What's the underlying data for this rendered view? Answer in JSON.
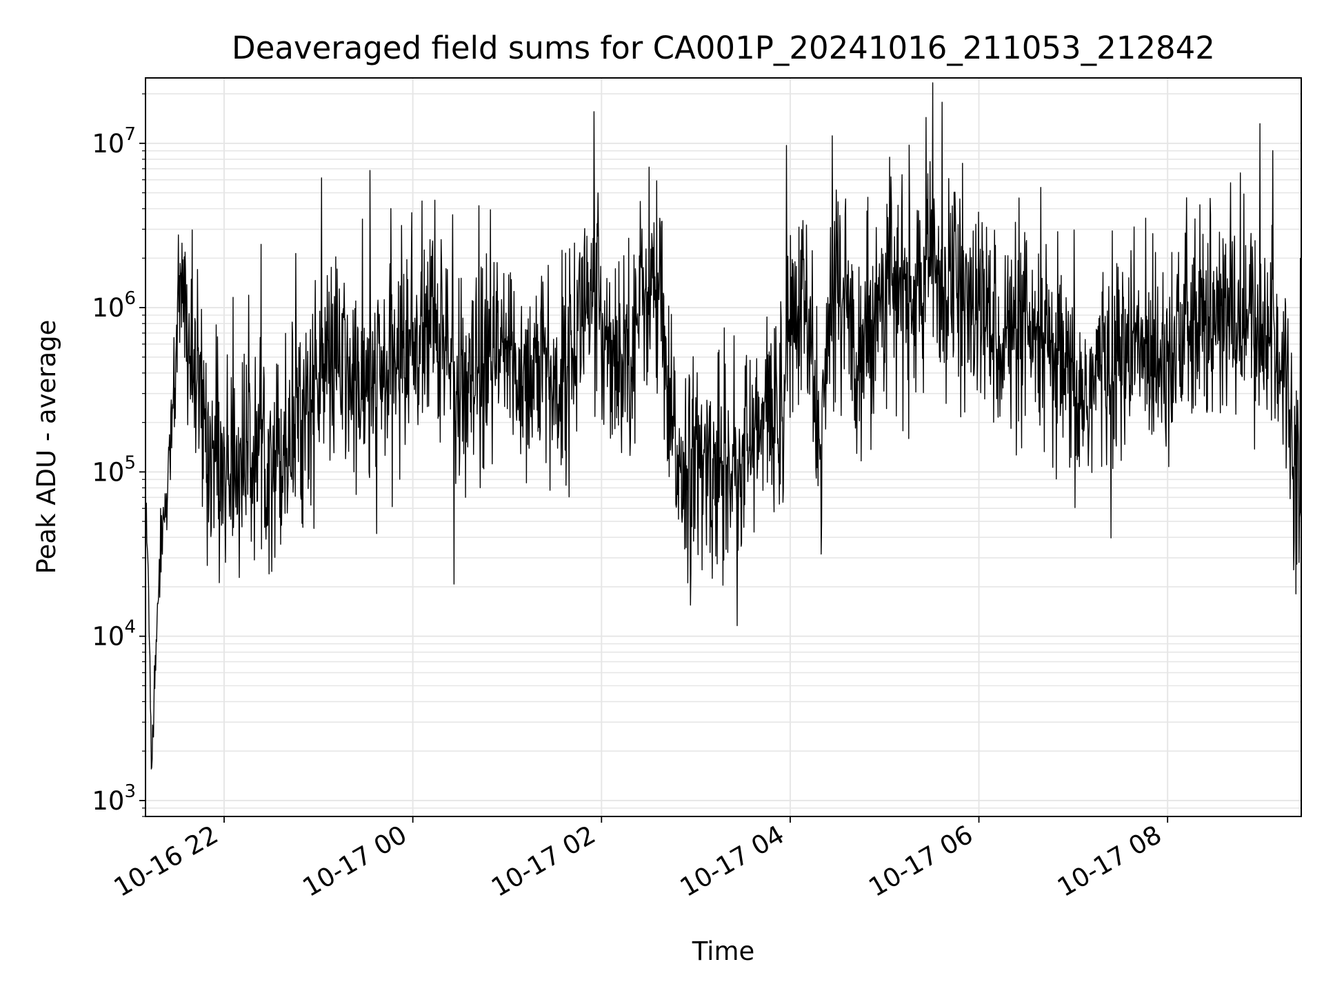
{
  "chart_data": {
    "type": "line",
    "title": "Deaveraged field sums for CA001P_20241016_211053_212842",
    "xlabel": "Time",
    "ylabel": "Peak ADU - average",
    "y_scale": "log",
    "ylim": [
      800,
      25000000
    ],
    "xlim": [
      "2024-10-16 21:10",
      "2024-10-17 09:25"
    ],
    "grid": "major and minor",
    "line_color": "#000000",
    "grid_color": "#e6e6e6",
    "x_ticks": [
      {
        "value": "2024-10-16 22:00",
        "label": "10-16 22"
      },
      {
        "value": "2024-10-17 00:00",
        "label": "10-17 00"
      },
      {
        "value": "2024-10-17 02:00",
        "label": "10-17 02"
      },
      {
        "value": "2024-10-17 04:00",
        "label": "10-17 04"
      },
      {
        "value": "2024-10-17 06:00",
        "label": "10-17 06"
      },
      {
        "value": "2024-10-17 08:00",
        "label": "10-17 08"
      }
    ],
    "y_ticks": [
      {
        "value": 1000,
        "base": "10",
        "exp": "3"
      },
      {
        "value": 10000,
        "base": "10",
        "exp": "4"
      },
      {
        "value": 100000,
        "base": "10",
        "exp": "5"
      },
      {
        "value": 1000000,
        "base": "10",
        "exp": "6"
      },
      {
        "value": 10000000,
        "base": "10",
        "exp": "7"
      }
    ],
    "series": [
      {
        "x": [
          "2024-10-16 21:10",
          "2024-10-16 21:12",
          "2024-10-16 21:14",
          "2024-10-16 21:17",
          "2024-10-16 21:20",
          "2024-10-16 21:25",
          "2024-10-16 21:30",
          "2024-10-16 21:35",
          "2024-10-16 21:40",
          "2024-10-16 21:45",
          "2024-10-16 21:50",
          "2024-10-16 21:55",
          "2024-10-16 22:05",
          "2024-10-16 22:15",
          "2024-10-16 22:25",
          "2024-10-16 22:30",
          "2024-10-16 22:35",
          "2024-10-16 22:45",
          "2024-10-16 23:00",
          "2024-10-16 23:10",
          "2024-10-16 23:20",
          "2024-10-16 23:30",
          "2024-10-16 23:45",
          "2024-10-16 23:55",
          "2024-10-17 00:05",
          "2024-10-17 00:15",
          "2024-10-17 00:25",
          "2024-10-17 00:30",
          "2024-10-17 00:40",
          "2024-10-17 00:50",
          "2024-10-17 01:00",
          "2024-10-17 01:10",
          "2024-10-17 01:20",
          "2024-10-17 01:30",
          "2024-10-17 01:40",
          "2024-10-17 01:50",
          "2024-10-17 02:00",
          "2024-10-17 02:10",
          "2024-10-17 02:20",
          "2024-10-17 02:30",
          "2024-10-17 02:38",
          "2024-10-17 02:42",
          "2024-10-17 02:50",
          "2024-10-17 03:00",
          "2024-10-17 03:15",
          "2024-10-17 03:30",
          "2024-10-17 03:45",
          "2024-10-17 03:50",
          "2024-10-17 03:55",
          "2024-10-17 04:00",
          "2024-10-17 04:10",
          "2024-10-17 04:15",
          "2024-10-17 04:20",
          "2024-10-17 04:25",
          "2024-10-17 04:30",
          "2024-10-17 04:40",
          "2024-10-17 04:50",
          "2024-10-17 05:00",
          "2024-10-17 05:10",
          "2024-10-17 05:20",
          "2024-10-17 05:30",
          "2024-10-17 05:35",
          "2024-10-17 05:45",
          "2024-10-17 06:00",
          "2024-10-17 06:15",
          "2024-10-17 06:30",
          "2024-10-17 06:45",
          "2024-10-17 07:00",
          "2024-10-17 07:05",
          "2024-10-17 07:15",
          "2024-10-17 07:30",
          "2024-10-17 07:45",
          "2024-10-17 08:00",
          "2024-10-17 08:15",
          "2024-10-17 08:30",
          "2024-10-17 08:45",
          "2024-10-17 09:00",
          "2024-10-17 09:10",
          "2024-10-17 09:15",
          "2024-10-17 09:20",
          "2024-10-17 09:25"
        ],
        "y": [
          60000,
          20000,
          1600,
          12000,
          40000,
          100000,
          900000,
          1000000,
          400000,
          250000,
          150000,
          120000,
          100000,
          130000,
          150000,
          140000,
          130000,
          200000,
          350000,
          500000,
          350000,
          300000,
          400000,
          600000,
          700000,
          800000,
          500000,
          200000,
          350000,
          450000,
          500000,
          400000,
          450000,
          300000,
          500000,
          1200000,
          800000,
          500000,
          700000,
          1500000,
          1000000,
          200000,
          120000,
          100000,
          110000,
          120000,
          200000,
          250000,
          300000,
          800000,
          1000000,
          300000,
          150000,
          700000,
          2000000,
          600000,
          700000,
          1500000,
          1200000,
          1100000,
          2000000,
          1500000,
          1200000,
          900000,
          700000,
          600000,
          500000,
          300000,
          250000,
          400000,
          500000,
          550000,
          600000,
          700000,
          800000,
          900000,
          700000,
          600000,
          400000,
          150000,
          90000
        ]
      }
    ]
  }
}
